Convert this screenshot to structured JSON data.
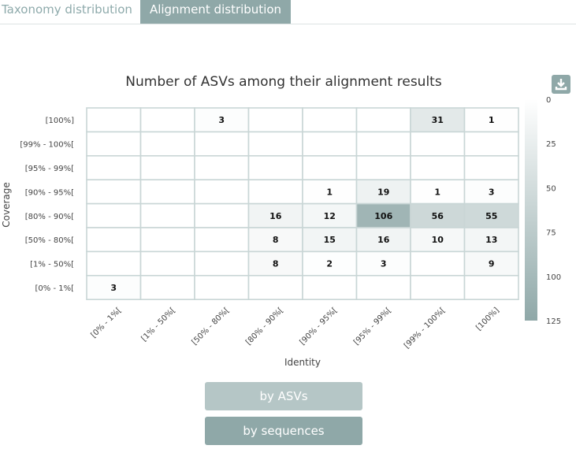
{
  "tabs": [
    {
      "label": "Taxonomy distribution",
      "active": false
    },
    {
      "label": "Alignment distribution",
      "active": true
    }
  ],
  "buttons": {
    "by_asvs": "by ASVs",
    "by_sequences": "by sequences"
  },
  "icons": {
    "download": "download-icon"
  },
  "colors": {
    "accent": "#8fa8a8",
    "accent_light": "#b5c6c6",
    "scale_min": "#ffffff",
    "scale_max": "#8fa8a8"
  },
  "chart_data": {
    "type": "heatmap",
    "title": "Number of ASVs among their alignment results",
    "xlabel": "Identity",
    "ylabel": "Coverage",
    "x_categories": [
      "[0% - 1%[",
      "[1% - 50%[",
      "[50% - 80%[",
      "[80% - 90%[",
      "[90% - 95%[",
      "[95% - 99%[",
      "[99% - 100%[",
      "[100%]"
    ],
    "y_categories": [
      "[100%]",
      "[99% - 100%[",
      "[95% - 99%[",
      "[90% - 95%[",
      "[80% - 90%[",
      "[50% - 80%[",
      "[1% - 50%[",
      "[0% - 1%["
    ],
    "values": [
      [
        null,
        null,
        3,
        null,
        null,
        null,
        31,
        1
      ],
      [
        null,
        null,
        null,
        null,
        null,
        null,
        null,
        null
      ],
      [
        null,
        null,
        null,
        null,
        null,
        null,
        null,
        null
      ],
      [
        null,
        null,
        null,
        null,
        1,
        19,
        1,
        3
      ],
      [
        null,
        null,
        null,
        16,
        12,
        106,
        56,
        55
      ],
      [
        null,
        null,
        null,
        8,
        15,
        16,
        10,
        13
      ],
      [
        null,
        null,
        null,
        8,
        2,
        3,
        null,
        9
      ],
      [
        3,
        null,
        null,
        null,
        null,
        null,
        null,
        null
      ]
    ],
    "color_scale": {
      "min": 0,
      "max": 125,
      "ticks": [
        "0",
        "25",
        "50",
        "75",
        "100",
        "125"
      ]
    }
  }
}
